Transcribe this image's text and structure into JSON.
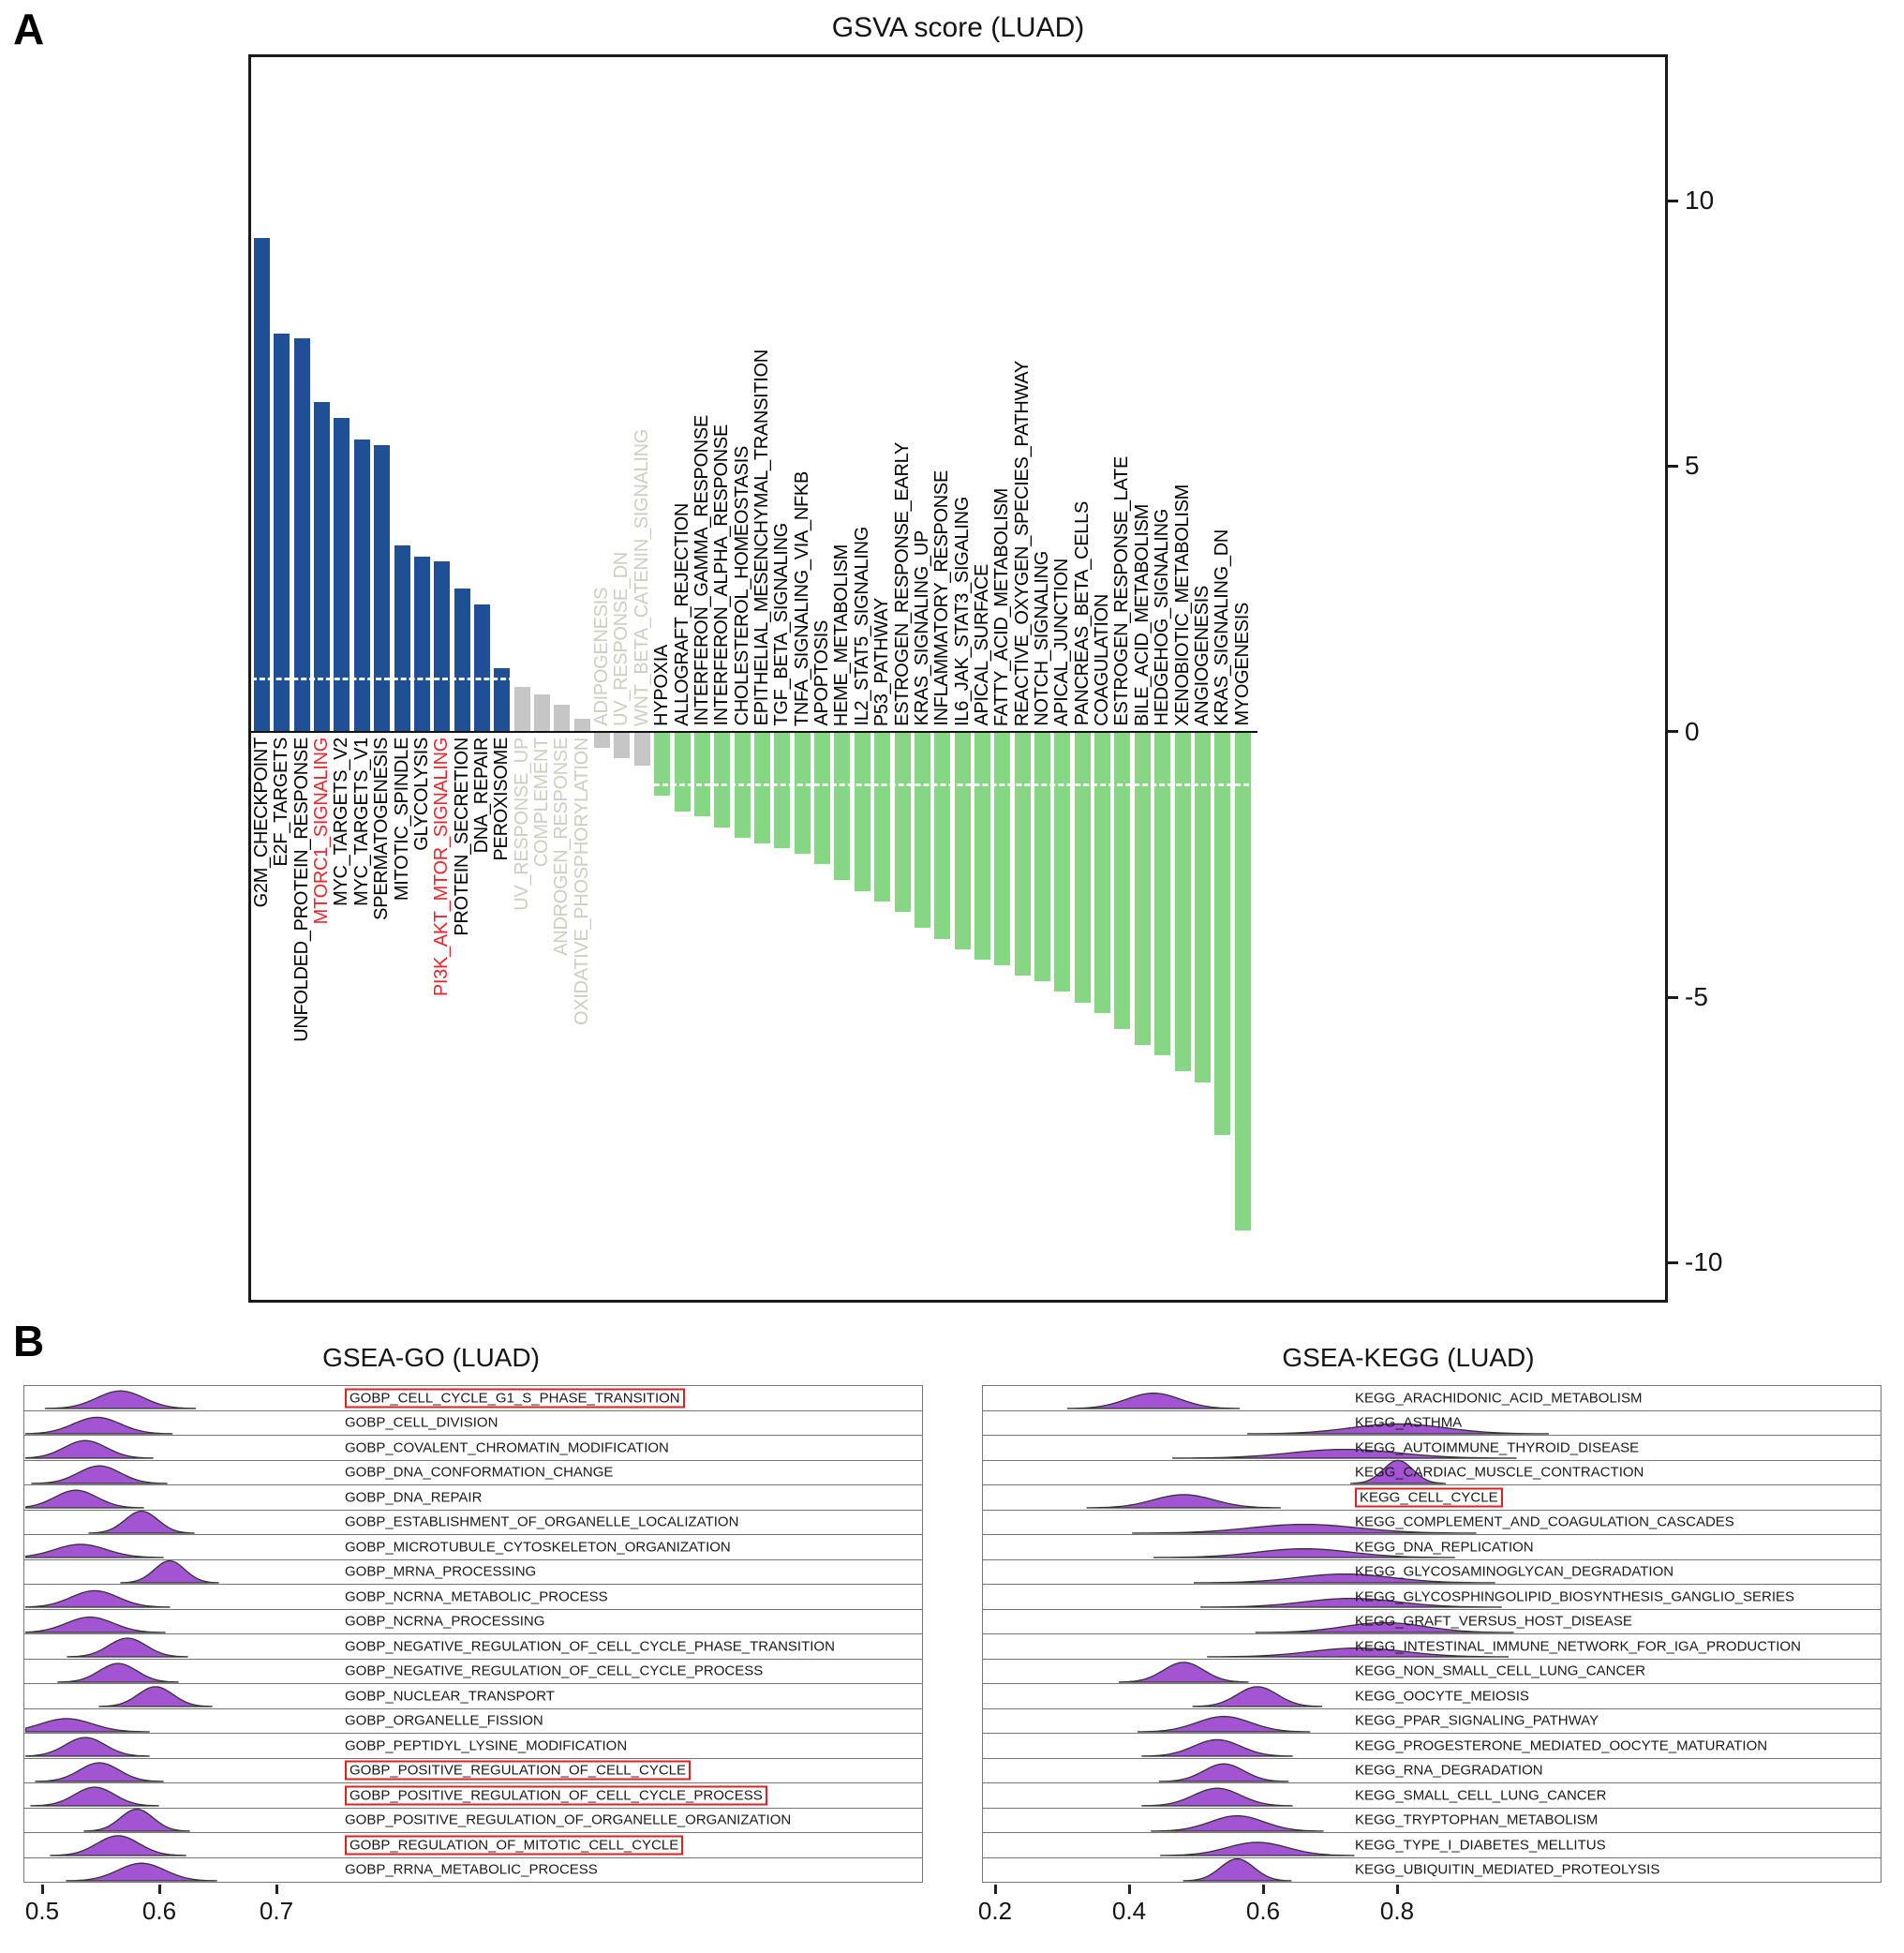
{
  "panels": {
    "a_label": "A",
    "b_label": "B"
  },
  "chart_data": [
    {
      "id": "gsva",
      "type": "bar",
      "title": "GSVA score (LUAD)",
      "xlabel": "",
      "ylabel": "",
      "ylim": [
        -10.7,
        12.7
      ],
      "yticks": [
        10,
        5,
        0,
        -5,
        -10
      ],
      "threshold_lines": [
        1,
        -1
      ],
      "grid": false,
      "colors": {
        "up": "#1f5096",
        "neutral": "#c6c6c6",
        "down": "#86d686",
        "label_black": "#000000",
        "label_red": "#e8262d",
        "label_gray": "#cdcdc1",
        "threshold": "#ffffff"
      },
      "bars": [
        {
          "label": "G2M_CHECKPOINT",
          "value": 9.3,
          "group": "up",
          "style": "black"
        },
        {
          "label": "E2F_TARGETS",
          "value": 7.5,
          "group": "up",
          "style": "black"
        },
        {
          "label": "UNFOLDED_PROTEIN_RESPONSE",
          "value": 7.4,
          "group": "up",
          "style": "black"
        },
        {
          "label": "MTORC1_SIGNALING",
          "value": 6.2,
          "group": "up",
          "style": "red"
        },
        {
          "label": "MYC_TARGETS_V2",
          "value": 5.9,
          "group": "up",
          "style": "black"
        },
        {
          "label": "MYC_TARGETS_V1",
          "value": 5.5,
          "group": "up",
          "style": "black"
        },
        {
          "label": "SPERMATOGENESIS",
          "value": 5.4,
          "group": "up",
          "style": "black"
        },
        {
          "label": "MITOTIC_SPINDLE",
          "value": 3.5,
          "group": "up",
          "style": "black"
        },
        {
          "label": "GLYCOLYSIS",
          "value": 3.3,
          "group": "up",
          "style": "black"
        },
        {
          "label": "PI3K_AKT_MTOR_SIGNALING",
          "value": 3.2,
          "group": "up",
          "style": "red"
        },
        {
          "label": "PROTEIN_SECRETION",
          "value": 2.7,
          "group": "up",
          "style": "black"
        },
        {
          "label": "DNA_REPAIR",
          "value": 2.4,
          "group": "up",
          "style": "black"
        },
        {
          "label": "PEROXISOME",
          "value": 1.2,
          "group": "up",
          "style": "black"
        },
        {
          "label": "UV_RESPONSE_UP",
          "value": 0.85,
          "group": "neutral",
          "style": "gray"
        },
        {
          "label": "COMPLEMENT",
          "value": 0.7,
          "group": "neutral",
          "style": "gray"
        },
        {
          "label": "ANDROGEN_RESPONSE",
          "value": 0.5,
          "group": "neutral",
          "style": "gray"
        },
        {
          "label": "OXIDATIVE_PHOSPHORYLATION",
          "value": 0.25,
          "group": "neutral",
          "style": "gray"
        },
        {
          "label": "ADIPOGENESIS",
          "value": -0.3,
          "group": "neutral",
          "style": "gray"
        },
        {
          "label": "UV_RESPONSE_DN",
          "value": -0.5,
          "group": "neutral",
          "style": "gray"
        },
        {
          "label": "WNT_BETA_CATENIN_SIGNALING",
          "value": -0.65,
          "group": "neutral",
          "style": "gray"
        },
        {
          "label": "HYPOXIA",
          "value": -1.2,
          "group": "down",
          "style": "black"
        },
        {
          "label": "ALLOGRAFT_REJECTION",
          "value": -1.5,
          "group": "down",
          "style": "black"
        },
        {
          "label": "INTERFERON_GAMMA_RESPONSE",
          "value": -1.6,
          "group": "down",
          "style": "black"
        },
        {
          "label": "INTERFERON_ALPHA_RESPONSE",
          "value": -1.8,
          "group": "down",
          "style": "black"
        },
        {
          "label": "CHOLESTEROL_HOMEOSTASIS",
          "value": -2.0,
          "group": "down",
          "style": "black"
        },
        {
          "label": "EPITHELIAL_MESENCHYMAL_TRANSITION",
          "value": -2.1,
          "group": "down",
          "style": "black"
        },
        {
          "label": "TGF_BETA_SIGNALING",
          "value": -2.2,
          "group": "down",
          "style": "black"
        },
        {
          "label": "TNFA_SIGNALING_VIA_NFKB",
          "value": -2.3,
          "group": "down",
          "style": "black"
        },
        {
          "label": "APOPTOSIS",
          "value": -2.5,
          "group": "down",
          "style": "black"
        },
        {
          "label": "HEME_METABOLISM",
          "value": -2.8,
          "group": "down",
          "style": "black"
        },
        {
          "label": "IL2_STAT5_SIGNALING",
          "value": -3.0,
          "group": "down",
          "style": "black"
        },
        {
          "label": "P53_PATHWAY",
          "value": -3.2,
          "group": "down",
          "style": "black"
        },
        {
          "label": "ESTROGEN_RESPONSE_EARLY",
          "value": -3.4,
          "group": "down",
          "style": "black"
        },
        {
          "label": "KRAS_SIGNALING_UP",
          "value": -3.7,
          "group": "down",
          "style": "black"
        },
        {
          "label": "INFLAMMATORY_RESPONSE",
          "value": -3.9,
          "group": "down",
          "style": "black"
        },
        {
          "label": "IL6_JAK_STAT3_SIGALING",
          "value": -4.1,
          "group": "down",
          "style": "black"
        },
        {
          "label": "APICAL_SURFACE",
          "value": -4.3,
          "group": "down",
          "style": "black"
        },
        {
          "label": "FATTY_ACID_METABOLISM",
          "value": -4.4,
          "group": "down",
          "style": "black"
        },
        {
          "label": "REACTIVE_OXYGEN_SPECIES_PATHWAY",
          "value": -4.6,
          "group": "down",
          "style": "black"
        },
        {
          "label": "NOTCH_SIGNALING",
          "value": -4.7,
          "group": "down",
          "style": "black"
        },
        {
          "label": "APICAL_JUNCTION",
          "value": -4.9,
          "group": "down",
          "style": "black"
        },
        {
          "label": "PANCREAS_BETA_CELLS",
          "value": -5.1,
          "group": "down",
          "style": "black"
        },
        {
          "label": "COAGULATION",
          "value": -5.3,
          "group": "down",
          "style": "black"
        },
        {
          "label": "ESTROGEN_RESPONSE_LATE",
          "value": -5.6,
          "group": "down",
          "style": "black"
        },
        {
          "label": "BILE_ACID_METABOLISM",
          "value": -5.9,
          "group": "down",
          "style": "black"
        },
        {
          "label": "HEDGEHOG_SIGNALING",
          "value": -6.1,
          "group": "down",
          "style": "black"
        },
        {
          "label": "XENOBIOTIC_METABOLISM",
          "value": -6.4,
          "group": "down",
          "style": "black"
        },
        {
          "label": "ANGIOGENESIS",
          "value": -6.6,
          "group": "down",
          "style": "black"
        },
        {
          "label": "KRAS_SIGNALING_DN",
          "value": -7.6,
          "group": "down",
          "style": "black"
        },
        {
          "label": "MYOGENESIS",
          "value": -9.4,
          "group": "down",
          "style": "black"
        }
      ]
    },
    {
      "id": "gsea_go",
      "type": "ridgeline",
      "title": "GSEA-GO (LUAD)",
      "xticks": [
        0.5,
        0.6,
        0.7
      ],
      "curve_color": "#a254d2",
      "highlight_box_color": "#e01f1f",
      "rows": [
        {
          "label": "GOBP_CELL_CYCLE_G1_S_PHASE_TRANSITION",
          "peak": 0.566,
          "sd": 0.02,
          "height": 0.8,
          "highlighted": true
        },
        {
          "label": "GOBP_CELL_DIVISION",
          "peak": 0.546,
          "sd": 0.02,
          "height": 0.75,
          "highlighted": false
        },
        {
          "label": "GOBP_COVALENT_CHROMATIN_MODIFICATION",
          "peak": 0.536,
          "sd": 0.018,
          "height": 0.8,
          "highlighted": false
        },
        {
          "label": "GOBP_DNA_CONFORMATION_CHANGE",
          "peak": 0.548,
          "sd": 0.018,
          "height": 0.8,
          "highlighted": false
        },
        {
          "label": "GOBP_DNA_REPAIR",
          "peak": 0.528,
          "sd": 0.018,
          "height": 0.8,
          "highlighted": false
        },
        {
          "label": "GOBP_ESTABLISHMENT_OF_ORGANELLE_LOCALIZATION",
          "peak": 0.584,
          "sd": 0.014,
          "height": 1.0,
          "highlighted": false
        },
        {
          "label": "GOBP_MICROTUBULE_CYTOSKELETON_ORGANIZATION",
          "peak": 0.532,
          "sd": 0.022,
          "height": 0.6,
          "highlighted": false
        },
        {
          "label": "GOBP_MRNA_PROCESSING",
          "peak": 0.608,
          "sd": 0.013,
          "height": 1.0,
          "highlighted": false
        },
        {
          "label": "GOBP_NCRNA_METABOLIC_PROCESS",
          "peak": 0.544,
          "sd": 0.02,
          "height": 0.75,
          "highlighted": false
        },
        {
          "label": "GOBP_NCRNA_PROCESSING",
          "peak": 0.54,
          "sd": 0.02,
          "height": 0.7,
          "highlighted": false
        },
        {
          "label": "GOBP_NEGATIVE_REGULATION_OF_CELL_CYCLE_PHASE_TRANSITION",
          "peak": 0.572,
          "sd": 0.016,
          "height": 0.85,
          "highlighted": false
        },
        {
          "label": "GOBP_NEGATIVE_REGULATION_OF_CELL_CYCLE_PROCESS",
          "peak": 0.564,
          "sd": 0.016,
          "height": 0.85,
          "highlighted": false
        },
        {
          "label": "GOBP_NUCLEAR_TRANSPORT",
          "peak": 0.596,
          "sd": 0.015,
          "height": 0.9,
          "highlighted": false
        },
        {
          "label": "GOBP_ORGANELLE_FISSION",
          "peak": 0.52,
          "sd": 0.022,
          "height": 0.6,
          "highlighted": false
        },
        {
          "label": "GOBP_PEPTIDYL_LYSINE_MODIFICATION",
          "peak": 0.536,
          "sd": 0.017,
          "height": 0.85,
          "highlighted": false
        },
        {
          "label": "GOBP_POSITIVE_REGULATION_OF_CELL_CYCLE",
          "peak": 0.548,
          "sd": 0.017,
          "height": 0.85,
          "highlighted": true
        },
        {
          "label": "GOBP_POSITIVE_REGULATION_OF_CELL_CYCLE_PROCESS",
          "peak": 0.544,
          "sd": 0.017,
          "height": 0.85,
          "highlighted": true
        },
        {
          "label": "GOBP_POSITIVE_REGULATION_OF_ORGANELLE_ORGANIZATION",
          "peak": 0.58,
          "sd": 0.014,
          "height": 1.0,
          "highlighted": false
        },
        {
          "label": "GOBP_REGULATION_OF_MITOTIC_CELL_CYCLE",
          "peak": 0.564,
          "sd": 0.018,
          "height": 0.9,
          "highlighted": true
        },
        {
          "label": "GOBP_RRNA_METABOLIC_PROCESS",
          "peak": 0.584,
          "sd": 0.02,
          "height": 0.8,
          "highlighted": false
        }
      ]
    },
    {
      "id": "gsea_kegg",
      "type": "ridgeline",
      "title": "GSEA-KEGG (LUAD)",
      "xticks": [
        0.2,
        0.4,
        0.6,
        0.8
      ],
      "curve_color": "#a254d2",
      "highlight_box_color": "#e01f1f",
      "rows": [
        {
          "label": "KEGG_ARACHIDONIC_ACID_METABOLISM",
          "peak": 0.435,
          "sd": 0.04,
          "height": 0.7,
          "highlighted": false
        },
        {
          "label": "KEGG_ASTHMA",
          "peak": 0.8,
          "sd": 0.07,
          "height": 0.45,
          "highlighted": false
        },
        {
          "label": "KEGG_AUTOIMMUNE_THYROID_DISEASE",
          "peak": 0.72,
          "sd": 0.08,
          "height": 0.4,
          "highlighted": false
        },
        {
          "label": "KEGG_CARDIAC_MUSCLE_CONTRACTION",
          "peak": 0.8,
          "sd": 0.022,
          "height": 1.05,
          "highlighted": false
        },
        {
          "label": "KEGG_CELL_CYCLE",
          "peak": 0.48,
          "sd": 0.045,
          "height": 0.6,
          "highlighted": true
        },
        {
          "label": "KEGG_COMPLEMENT_AND_COAGULATION_CASCADES",
          "peak": 0.66,
          "sd": 0.08,
          "height": 0.4,
          "highlighted": false
        },
        {
          "label": "KEGG_DNA_REPLICATION",
          "peak": 0.66,
          "sd": 0.07,
          "height": 0.4,
          "highlighted": false
        },
        {
          "label": "KEGG_GLYCOSAMINOGLYCAN_DEGRADATION",
          "peak": 0.72,
          "sd": 0.07,
          "height": 0.4,
          "highlighted": false
        },
        {
          "label": "KEGG_GLYCOSPHINGOLIPID_BIOSYNTHESIS_GANGLIO_SERIES",
          "peak": 0.73,
          "sd": 0.07,
          "height": 0.4,
          "highlighted": false
        },
        {
          "label": "KEGG_GRAFT_VERSUS_HOST_DISEASE",
          "peak": 0.78,
          "sd": 0.06,
          "height": 0.45,
          "highlighted": false
        },
        {
          "label": "KEGG_INTESTINAL_IMMUNE_NETWORK_FOR_IGA_PRODUCTION",
          "peak": 0.74,
          "sd": 0.07,
          "height": 0.4,
          "highlighted": false
        },
        {
          "label": "KEGG_NON_SMALL_CELL_LUNG_CANCER",
          "peak": 0.48,
          "sd": 0.03,
          "height": 0.9,
          "highlighted": false
        },
        {
          "label": "KEGG_OOCYTE_MEIOSIS",
          "peak": 0.59,
          "sd": 0.03,
          "height": 0.9,
          "highlighted": false
        },
        {
          "label": "KEGG_PPAR_SIGNALING_PATHWAY",
          "peak": 0.54,
          "sd": 0.04,
          "height": 0.7,
          "highlighted": false
        },
        {
          "label": "KEGG_PROGESTERONE_MEDIATED_OOCYTE_MATURATION",
          "peak": 0.53,
          "sd": 0.035,
          "height": 0.75,
          "highlighted": false
        },
        {
          "label": "KEGG_RNA_DEGRADATION",
          "peak": 0.54,
          "sd": 0.03,
          "height": 0.8,
          "highlighted": false
        },
        {
          "label": "KEGG_SMALL_CELL_LUNG_CANCER",
          "peak": 0.53,
          "sd": 0.035,
          "height": 0.8,
          "highlighted": false
        },
        {
          "label": "KEGG_TRYPTOPHAN_METABOLISM",
          "peak": 0.56,
          "sd": 0.04,
          "height": 0.7,
          "highlighted": false
        },
        {
          "label": "KEGG_TYPE_I_DIABETES_MELLITUS",
          "peak": 0.59,
          "sd": 0.045,
          "height": 0.6,
          "highlighted": false
        },
        {
          "label": "KEGG_UBIQUITIN_MEDIATED_PROTEOLYSIS",
          "peak": 0.56,
          "sd": 0.025,
          "height": 1.0,
          "highlighted": false
        }
      ]
    }
  ]
}
